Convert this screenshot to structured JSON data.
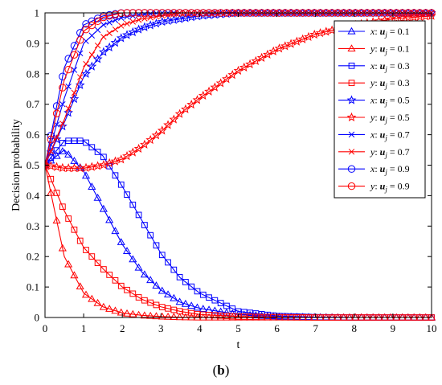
{
  "caption": {
    "open": "(",
    "letter": "b",
    "close": ")"
  },
  "chart_data": {
    "type": "line",
    "xlabel": "t",
    "ylabel": "Decision probability",
    "xlim": [
      0,
      10
    ],
    "ylim": [
      0,
      1
    ],
    "xticks": [
      "0",
      "1",
      "2",
      "3",
      "4",
      "5",
      "6",
      "7",
      "8",
      "9",
      "10"
    ],
    "yticks": [
      "0",
      "0.1",
      "0.2",
      "0.3",
      "0.4",
      "0.5",
      "0.6",
      "0.7",
      "0.8",
      "0.9",
      "1"
    ],
    "legend_position": "top-right",
    "x": [
      0,
      0.5,
      1,
      1.5,
      2,
      2.5,
      3,
      3.5,
      4,
      5,
      6,
      7,
      8,
      9,
      10
    ],
    "series": [
      {
        "name": "x: u_j = 0.1",
        "var": "x",
        "u": "0.1",
        "color": "#0000ff",
        "marker": "triangle",
        "values": [
          0.5,
          0.55,
          0.48,
          0.36,
          0.24,
          0.15,
          0.09,
          0.05,
          0.03,
          0.01,
          0.003,
          0.001,
          0,
          0,
          0
        ]
      },
      {
        "name": "y: u_j = 0.1",
        "var": "y",
        "u": "0.1",
        "color": "#ff0000",
        "marker": "triangle",
        "values": [
          0.5,
          0.2,
          0.08,
          0.035,
          0.015,
          0.007,
          0.003,
          0.001,
          0,
          0,
          0,
          0,
          0,
          0,
          0
        ]
      },
      {
        "name": "x: u_j = 0.3",
        "var": "x",
        "u": "0.3",
        "color": "#0000ff",
        "marker": "square",
        "values": [
          0.5,
          0.58,
          0.58,
          0.53,
          0.43,
          0.32,
          0.21,
          0.13,
          0.08,
          0.02,
          0.005,
          0.001,
          0,
          0,
          0
        ]
      },
      {
        "name": "y: u_j = 0.3",
        "var": "y",
        "u": "0.3",
        "color": "#ff0000",
        "marker": "square",
        "values": [
          0.5,
          0.35,
          0.23,
          0.16,
          0.1,
          0.06,
          0.035,
          0.02,
          0.01,
          0.003,
          0.001,
          0,
          0,
          0,
          0
        ]
      },
      {
        "name": "x: u_j = 0.5",
        "var": "x",
        "u": "0.5",
        "color": "#0000ff",
        "marker": "star",
        "values": [
          0.5,
          0.64,
          0.79,
          0.87,
          0.92,
          0.95,
          0.97,
          0.98,
          0.99,
          1,
          1,
          1,
          1,
          1,
          1
        ]
      },
      {
        "name": "y: u_j = 0.5",
        "var": "y",
        "u": "0.5",
        "color": "#ff0000",
        "marker": "star",
        "values": [
          0.5,
          0.49,
          0.49,
          0.5,
          0.52,
          0.56,
          0.61,
          0.67,
          0.72,
          0.81,
          0.88,
          0.93,
          0.96,
          0.98,
          0.99
        ]
      },
      {
        "name": "x: u_j = 0.7",
        "var": "x",
        "u": "0.7",
        "color": "#0000ff",
        "marker": "x",
        "values": [
          0.5,
          0.72,
          0.9,
          0.96,
          0.985,
          0.995,
          1,
          1,
          1,
          1,
          1,
          1,
          1,
          1,
          1
        ]
      },
      {
        "name": "y: u_j = 0.7",
        "var": "y",
        "u": "0.7",
        "color": "#ff0000",
        "marker": "x",
        "values": [
          0.5,
          0.65,
          0.82,
          0.92,
          0.96,
          0.98,
          0.99,
          1,
          1,
          1,
          1,
          1,
          1,
          1,
          1
        ]
      },
      {
        "name": "x: u_j = 0.9",
        "var": "x",
        "u": "0.9",
        "color": "#0000ff",
        "marker": "circle",
        "values": [
          0.5,
          0.82,
          0.96,
          0.99,
          1,
          1,
          1,
          1,
          1,
          1,
          1,
          1,
          1,
          1,
          1
        ]
      },
      {
        "name": "y: u_j = 0.9",
        "var": "y",
        "u": "0.9",
        "color": "#ff0000",
        "marker": "circle",
        "values": [
          0.5,
          0.78,
          0.94,
          0.985,
          1,
          1,
          1,
          1,
          1,
          1,
          1,
          1,
          1,
          1,
          1
        ]
      }
    ]
  }
}
